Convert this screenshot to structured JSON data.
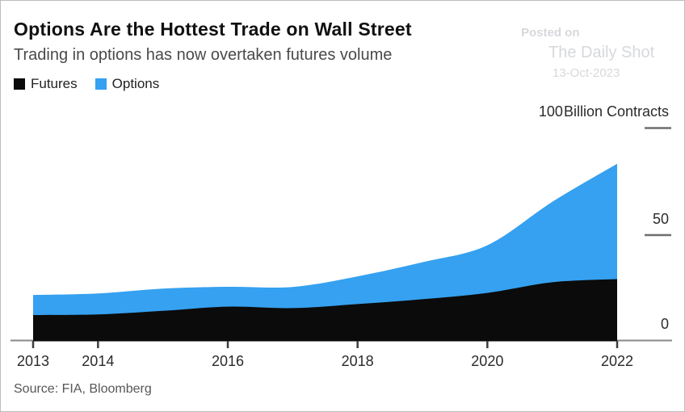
{
  "header": {
    "title": "Options Are the Hottest Trade on Wall Street",
    "subtitle": "Trading in options has now overtaken futures volume"
  },
  "legend": {
    "items": [
      {
        "label": "Futures",
        "color": "#0b0b0b"
      },
      {
        "label": "Options",
        "color": "#35a1f0"
      }
    ]
  },
  "watermark": {
    "line1": "Posted on",
    "line2": "The Daily Shot",
    "line3": "13-Oct-2023"
  },
  "axis": {
    "top_tick": "100",
    "unit_label": "Billion Contracts",
    "mid_tick": "50",
    "zero_tick": "0"
  },
  "source": "Source: FIA, Bloomberg",
  "chart_data": {
    "type": "area",
    "stacked": true,
    "title": "Options Are the Hottest Trade on Wall Street",
    "subtitle": "Trading in options has now overtaken futures volume",
    "ylabel": "Billion Contracts",
    "x": [
      2013,
      2014,
      2015,
      2016,
      2017,
      2018,
      2019,
      2020,
      2021,
      2022
    ],
    "series": [
      {
        "name": "Futures",
        "color": "#0b0b0b",
        "values": [
          12.0,
          12.3,
          14.0,
          16.0,
          15.3,
          17.2,
          19.5,
          22.5,
          27.5,
          29.0
        ]
      },
      {
        "name": "Options",
        "color": "#35a1f0",
        "values": [
          9.5,
          9.9,
          10.5,
          9.4,
          10.0,
          13.1,
          17.5,
          22.5,
          38.0,
          54.5
        ]
      }
    ],
    "x_tick_labels": [
      "2013",
      "2014",
      "2016",
      "2018",
      "2020",
      "2022"
    ],
    "x_tick_years": [
      2013,
      2014,
      2016,
      2018,
      2020,
      2022
    ],
    "ylim": [
      0,
      100
    ],
    "y_ticks": [
      0,
      50,
      100
    ],
    "grid": false,
    "legend_position": "top-left",
    "axis_colors": {
      "baseline": "#8a8a8a",
      "tick": "#3d3d3d",
      "dash": "#6e6e6e"
    }
  }
}
